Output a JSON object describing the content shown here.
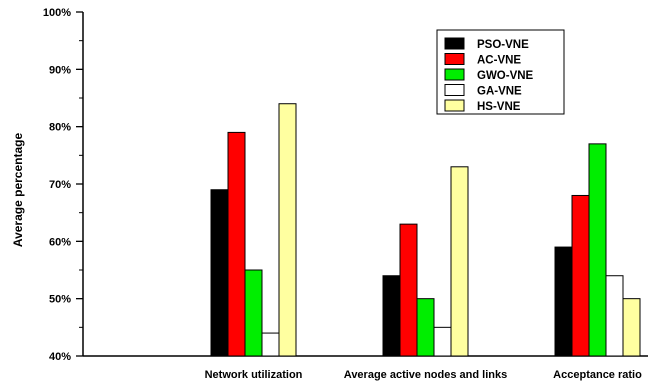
{
  "chart_data": {
    "type": "bar",
    "title": "",
    "xlabel": "",
    "ylabel": "Average percentage",
    "ylim": [
      40,
      100
    ],
    "yticks": [
      40,
      50,
      60,
      70,
      80,
      90,
      100
    ],
    "ytick_labels": [
      "40%",
      "50%",
      "60%",
      "70%",
      "80%",
      "90%",
      "100%"
    ],
    "categories": [
      "Network utilization",
      "Average active nodes and links",
      "Acceptance ratio"
    ],
    "series": [
      {
        "name": "PSO-VNE",
        "color": "#000000",
        "values": [
          69,
          54,
          59
        ]
      },
      {
        "name": "AC-VNE",
        "color": "#ff0000",
        "values": [
          79,
          63,
          68
        ]
      },
      {
        "name": "GWO-VNE",
        "color": "#00ee00",
        "values": [
          55,
          50,
          77
        ]
      },
      {
        "name": "GA-VNE",
        "color": "#ffffff",
        "values": [
          44,
          45,
          54
        ]
      },
      {
        "name": "HS-VNE",
        "color": "#ffffa0",
        "values": [
          84,
          73,
          50
        ]
      }
    ],
    "legend_position": "top-right",
    "grid": false
  }
}
